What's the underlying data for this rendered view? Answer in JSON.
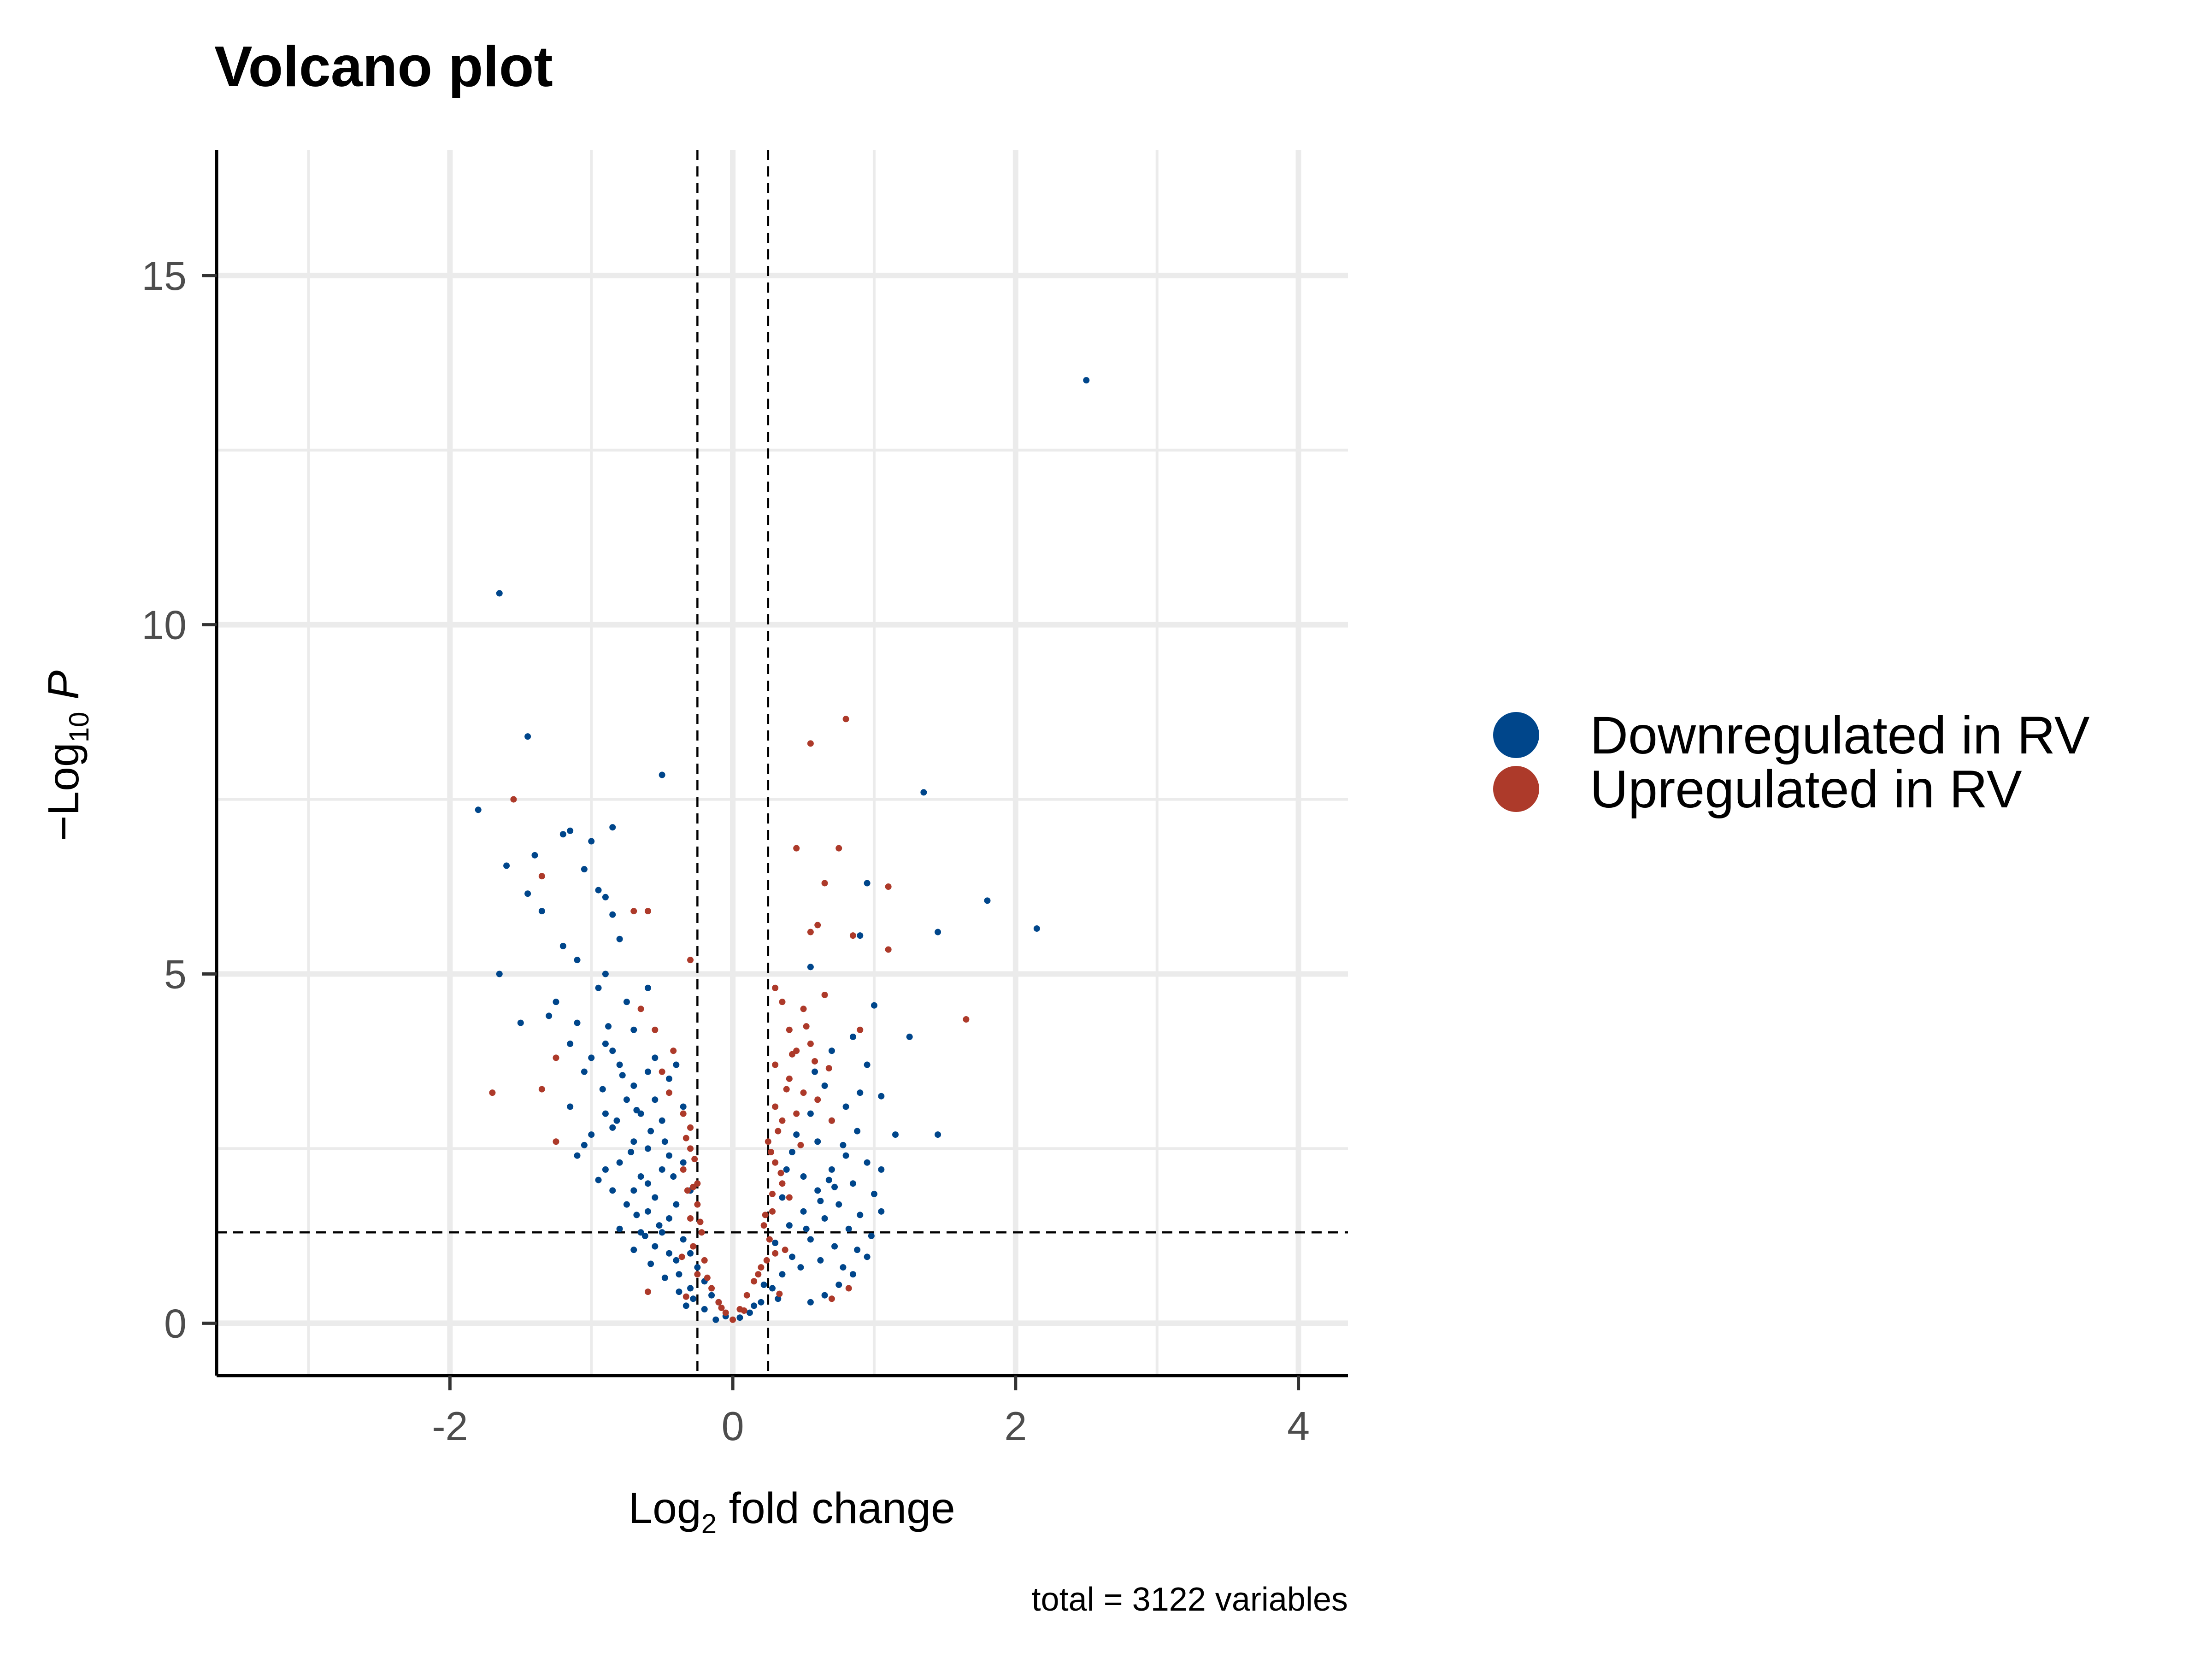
{
  "chart_data": {
    "type": "scatter",
    "title": "Volcano plot",
    "xlabel": {
      "prefix": "Log",
      "sub": "2",
      "suffix": " fold change"
    },
    "ylabel": {
      "prefix": "−Log",
      "sub": "10",
      "suffix": " P"
    },
    "xlim": [
      -3.65,
      4.35
    ],
    "ylim": [
      -0.75,
      16.8
    ],
    "xticks": [
      -2,
      0,
      2,
      4
    ],
    "xtick_labels": [
      "-2",
      "0",
      "2",
      "4"
    ],
    "yticks": [
      0,
      5,
      10,
      15
    ],
    "ytick_labels": [
      "0",
      "5",
      "10",
      "15"
    ],
    "x_minor_gridlines": [
      -3,
      -1,
      1,
      3
    ],
    "y_minor_gridlines": [
      2.5,
      7.5,
      12.5
    ],
    "grid": true,
    "thresholds": {
      "x": [
        -0.25,
        0.25
      ],
      "y": 1.3
    },
    "legend_position": "right",
    "caption": "total = 3122 variables",
    "series": [
      {
        "name": "Downregulated in RV",
        "color": "#00468B",
        "points": [
          [
            2.5,
            13.5
          ],
          [
            -1.65,
            10.45
          ],
          [
            -1.45,
            8.4
          ],
          [
            -0.5,
            7.85
          ],
          [
            1.35,
            7.6
          ],
          [
            -1.8,
            7.35
          ],
          [
            -1.6,
            6.55
          ],
          [
            -1.4,
            6.7
          ],
          [
            -1.15,
            7.05
          ],
          [
            -1.2,
            7.0
          ],
          [
            -0.85,
            7.1
          ],
          [
            -1.0,
            6.9
          ],
          [
            -1.05,
            6.5
          ],
          [
            -1.45,
            6.15
          ],
          [
            -0.95,
            6.2
          ],
          [
            -0.9,
            6.1
          ],
          [
            -0.85,
            5.85
          ],
          [
            -1.35,
            5.9
          ],
          [
            0.95,
            6.3
          ],
          [
            1.8,
            6.05
          ],
          [
            2.15,
            5.65
          ],
          [
            1.45,
            5.6
          ],
          [
            0.55,
            5.1
          ],
          [
            0.9,
            5.55
          ],
          [
            -0.8,
            5.5
          ],
          [
            -1.2,
            5.4
          ],
          [
            -1.1,
            5.2
          ],
          [
            -0.9,
            5.0
          ],
          [
            -0.95,
            4.8
          ],
          [
            -1.65,
            5.0
          ],
          [
            -1.5,
            4.3
          ],
          [
            -1.3,
            4.4
          ],
          [
            -1.1,
            4.3
          ],
          [
            -0.75,
            4.6
          ],
          [
            -0.6,
            4.8
          ],
          [
            -0.7,
            4.2
          ],
          [
            1.0,
            4.55
          ],
          [
            1.25,
            4.1
          ],
          [
            -0.9,
            4.0
          ],
          [
            -0.85,
            3.9
          ],
          [
            -1.0,
            3.8
          ],
          [
            -0.8,
            3.7
          ],
          [
            -0.6,
            3.6
          ],
          [
            -0.55,
            3.8
          ],
          [
            -0.4,
            3.7
          ],
          [
            -0.45,
            3.5
          ],
          [
            -0.7,
            3.4
          ],
          [
            -0.75,
            3.2
          ],
          [
            -0.9,
            3.0
          ],
          [
            -0.65,
            3.0
          ],
          [
            -0.5,
            2.9
          ],
          [
            -0.35,
            3.1
          ],
          [
            -0.55,
            3.2
          ],
          [
            -0.85,
            2.8
          ],
          [
            -1.0,
            2.7
          ],
          [
            -0.7,
            2.6
          ],
          [
            -0.6,
            2.5
          ],
          [
            -0.45,
            2.4
          ],
          [
            -0.35,
            2.3
          ],
          [
            -0.5,
            2.2
          ],
          [
            -0.65,
            2.1
          ],
          [
            -0.8,
            2.3
          ],
          [
            -1.1,
            2.4
          ],
          [
            -0.9,
            2.2
          ],
          [
            -0.7,
            1.9
          ],
          [
            -0.55,
            1.8
          ],
          [
            -0.4,
            1.7
          ],
          [
            -0.3,
            1.9
          ],
          [
            -0.45,
            1.5
          ],
          [
            -0.6,
            1.6
          ],
          [
            -0.75,
            1.7
          ],
          [
            -0.5,
            1.3
          ],
          [
            -0.35,
            1.2
          ],
          [
            -0.3,
            1.0
          ],
          [
            -0.4,
            0.9
          ],
          [
            -0.55,
            1.1
          ],
          [
            -0.65,
            1.3
          ],
          [
            -0.25,
            0.8
          ],
          [
            -0.2,
            0.6
          ],
          [
            -0.3,
            0.5
          ],
          [
            -0.15,
            0.4
          ],
          [
            -0.1,
            0.3
          ],
          [
            -0.2,
            0.2
          ],
          [
            -0.05,
            0.1
          ],
          [
            -0.12,
            0.05
          ],
          [
            -0.28,
            0.35
          ],
          [
            -0.38,
            0.7
          ],
          [
            -0.45,
            1.0
          ],
          [
            -0.52,
            1.4
          ],
          [
            -0.6,
            2.0
          ],
          [
            -0.72,
            2.45
          ],
          [
            -0.82,
            2.9
          ],
          [
            -0.92,
            3.35
          ],
          [
            -1.05,
            3.6
          ],
          [
            -1.15,
            4.0
          ],
          [
            -1.25,
            4.6
          ],
          [
            -0.42,
            2.1
          ],
          [
            -0.48,
            2.6
          ],
          [
            -0.58,
            2.75
          ],
          [
            -0.68,
            3.05
          ],
          [
            -0.78,
            3.55
          ],
          [
            -0.88,
            4.25
          ],
          [
            -0.62,
            1.25
          ],
          [
            -0.68,
            1.55
          ],
          [
            -0.58,
            0.85
          ],
          [
            -0.48,
            0.65
          ],
          [
            -0.38,
            0.45
          ],
          [
            -0.33,
            0.25
          ],
          [
            -0.7,
            1.05
          ],
          [
            -0.8,
            1.35
          ],
          [
            -0.85,
            1.9
          ],
          [
            -0.95,
            2.05
          ],
          [
            -1.05,
            2.55
          ],
          [
            -1.15,
            3.1
          ],
          [
            0.05,
            0.08
          ],
          [
            0.12,
            0.15
          ],
          [
            0.2,
            0.3
          ],
          [
            0.28,
            0.5
          ],
          [
            0.35,
            0.7
          ],
          [
            0.42,
            0.95
          ],
          [
            0.3,
            1.15
          ],
          [
            0.4,
            1.4
          ],
          [
            0.5,
            1.6
          ],
          [
            0.6,
            1.9
          ],
          [
            0.7,
            2.2
          ],
          [
            0.8,
            2.4
          ],
          [
            0.55,
            1.2
          ],
          [
            0.65,
            1.5
          ],
          [
            0.75,
            1.7
          ],
          [
            0.85,
            2.0
          ],
          [
            0.95,
            2.3
          ],
          [
            0.62,
            0.9
          ],
          [
            0.48,
            0.8
          ],
          [
            0.72,
            1.1
          ],
          [
            0.82,
            1.35
          ],
          [
            0.9,
            1.55
          ],
          [
            1.0,
            1.85
          ],
          [
            1.05,
            2.2
          ],
          [
            0.5,
            2.1
          ],
          [
            0.6,
            2.6
          ],
          [
            0.7,
            2.9
          ],
          [
            0.8,
            3.1
          ],
          [
            0.9,
            3.3
          ],
          [
            0.65,
            3.4
          ],
          [
            0.45,
            2.7
          ],
          [
            0.55,
            3.0
          ],
          [
            0.58,
            3.6
          ],
          [
            0.7,
            3.9
          ],
          [
            0.85,
            4.1
          ],
          [
            0.95,
            3.7
          ],
          [
            1.05,
            3.25
          ],
          [
            1.15,
            2.7
          ],
          [
            1.45,
            2.7
          ],
          [
            0.78,
            0.8
          ],
          [
            0.88,
            1.05
          ],
          [
            0.98,
            1.25
          ],
          [
            0.35,
            1.8
          ],
          [
            0.38,
            2.2
          ],
          [
            0.42,
            2.45
          ],
          [
            0.32,
            0.35
          ],
          [
            0.22,
            0.55
          ],
          [
            0.15,
            0.25
          ],
          [
            0.68,
            2.05
          ],
          [
            0.78,
            2.55
          ],
          [
            0.88,
            2.75
          ],
          [
            0.52,
            1.35
          ],
          [
            0.62,
            1.75
          ],
          [
            0.72,
            1.95
          ],
          [
            1.05,
            1.6
          ],
          [
            0.95,
            0.95
          ],
          [
            0.85,
            0.7
          ],
          [
            0.75,
            0.55
          ],
          [
            0.65,
            0.4
          ],
          [
            0.55,
            0.3
          ]
        ]
      },
      {
        "name": "Upregulated in RV",
        "color": "#AD3A2A",
        "points": [
          [
            0.8,
            8.65
          ],
          [
            0.55,
            8.3
          ],
          [
            -1.55,
            7.5
          ],
          [
            0.45,
            6.8
          ],
          [
            0.75,
            6.8
          ],
          [
            0.65,
            6.3
          ],
          [
            1.1,
            6.25
          ],
          [
            -0.7,
            5.9
          ],
          [
            -1.35,
            6.4
          ],
          [
            -0.6,
            5.9
          ],
          [
            0.55,
            5.6
          ],
          [
            0.6,
            5.7
          ],
          [
            0.85,
            5.55
          ],
          [
            1.1,
            5.35
          ],
          [
            -0.3,
            5.2
          ],
          [
            0.3,
            4.8
          ],
          [
            0.35,
            4.6
          ],
          [
            0.5,
            4.5
          ],
          [
            0.65,
            4.7
          ],
          [
            -0.65,
            4.5
          ],
          [
            -0.55,
            4.2
          ],
          [
            0.4,
            4.2
          ],
          [
            0.45,
            3.9
          ],
          [
            0.55,
            4.0
          ],
          [
            0.9,
            4.2
          ],
          [
            1.65,
            4.35
          ],
          [
            -1.25,
            3.8
          ],
          [
            -1.35,
            3.35
          ],
          [
            -0.5,
            3.6
          ],
          [
            -0.45,
            3.3
          ],
          [
            0.3,
            3.7
          ],
          [
            0.4,
            3.5
          ],
          [
            0.5,
            3.3
          ],
          [
            0.6,
            3.2
          ],
          [
            -1.7,
            3.3
          ],
          [
            -0.35,
            3.0
          ],
          [
            -0.3,
            2.8
          ],
          [
            0.3,
            3.1
          ],
          [
            0.35,
            2.9
          ],
          [
            0.45,
            3.0
          ],
          [
            0.7,
            2.9
          ],
          [
            -1.25,
            2.6
          ],
          [
            -0.3,
            2.5
          ],
          [
            -0.35,
            2.2
          ],
          [
            -0.25,
            2.0
          ],
          [
            0.25,
            2.6
          ],
          [
            0.3,
            2.3
          ],
          [
            0.35,
            2.0
          ],
          [
            0.4,
            1.8
          ],
          [
            0.28,
            1.6
          ],
          [
            -0.25,
            1.7
          ],
          [
            -0.3,
            1.5
          ],
          [
            -0.22,
            1.3
          ],
          [
            -0.28,
            1.1
          ],
          [
            0.22,
            1.4
          ],
          [
            0.26,
            1.2
          ],
          [
            0.3,
            1.0
          ],
          [
            0.24,
            0.9
          ],
          [
            -0.2,
            0.9
          ],
          [
            -0.25,
            0.7
          ],
          [
            -0.15,
            0.5
          ],
          [
            -0.1,
            0.3
          ],
          [
            0.1,
            0.4
          ],
          [
            0.15,
            0.6
          ],
          [
            0.2,
            0.8
          ],
          [
            0.05,
            0.2
          ],
          [
            -0.05,
            0.15
          ],
          [
            0.0,
            0.05
          ],
          [
            -0.08,
            0.22
          ],
          [
            0.08,
            0.18
          ],
          [
            -0.18,
            0.65
          ],
          [
            0.18,
            0.7
          ],
          [
            -0.32,
            1.9
          ],
          [
            0.34,
            2.15
          ],
          [
            -0.27,
            2.35
          ],
          [
            0.27,
            2.45
          ],
          [
            -0.36,
            0.95
          ],
          [
            0.37,
            1.05
          ],
          [
            -0.6,
            0.45
          ],
          [
            0.7,
            0.35
          ],
          [
            0.82,
            0.5
          ],
          [
            -0.33,
            0.38
          ],
          [
            0.33,
            0.42
          ],
          [
            -0.23,
            1.45
          ],
          [
            0.23,
            1.55
          ],
          [
            0.28,
            1.85
          ],
          [
            -0.28,
            1.95
          ],
          [
            0.32,
            2.75
          ],
          [
            -0.33,
            2.65
          ],
          [
            0.48,
            2.55
          ],
          [
            0.52,
            4.25
          ],
          [
            0.42,
            3.85
          ],
          [
            0.38,
            3.35
          ],
          [
            0.58,
            3.75
          ],
          [
            0.68,
            3.65
          ],
          [
            -0.42,
            3.9
          ]
        ]
      }
    ]
  }
}
